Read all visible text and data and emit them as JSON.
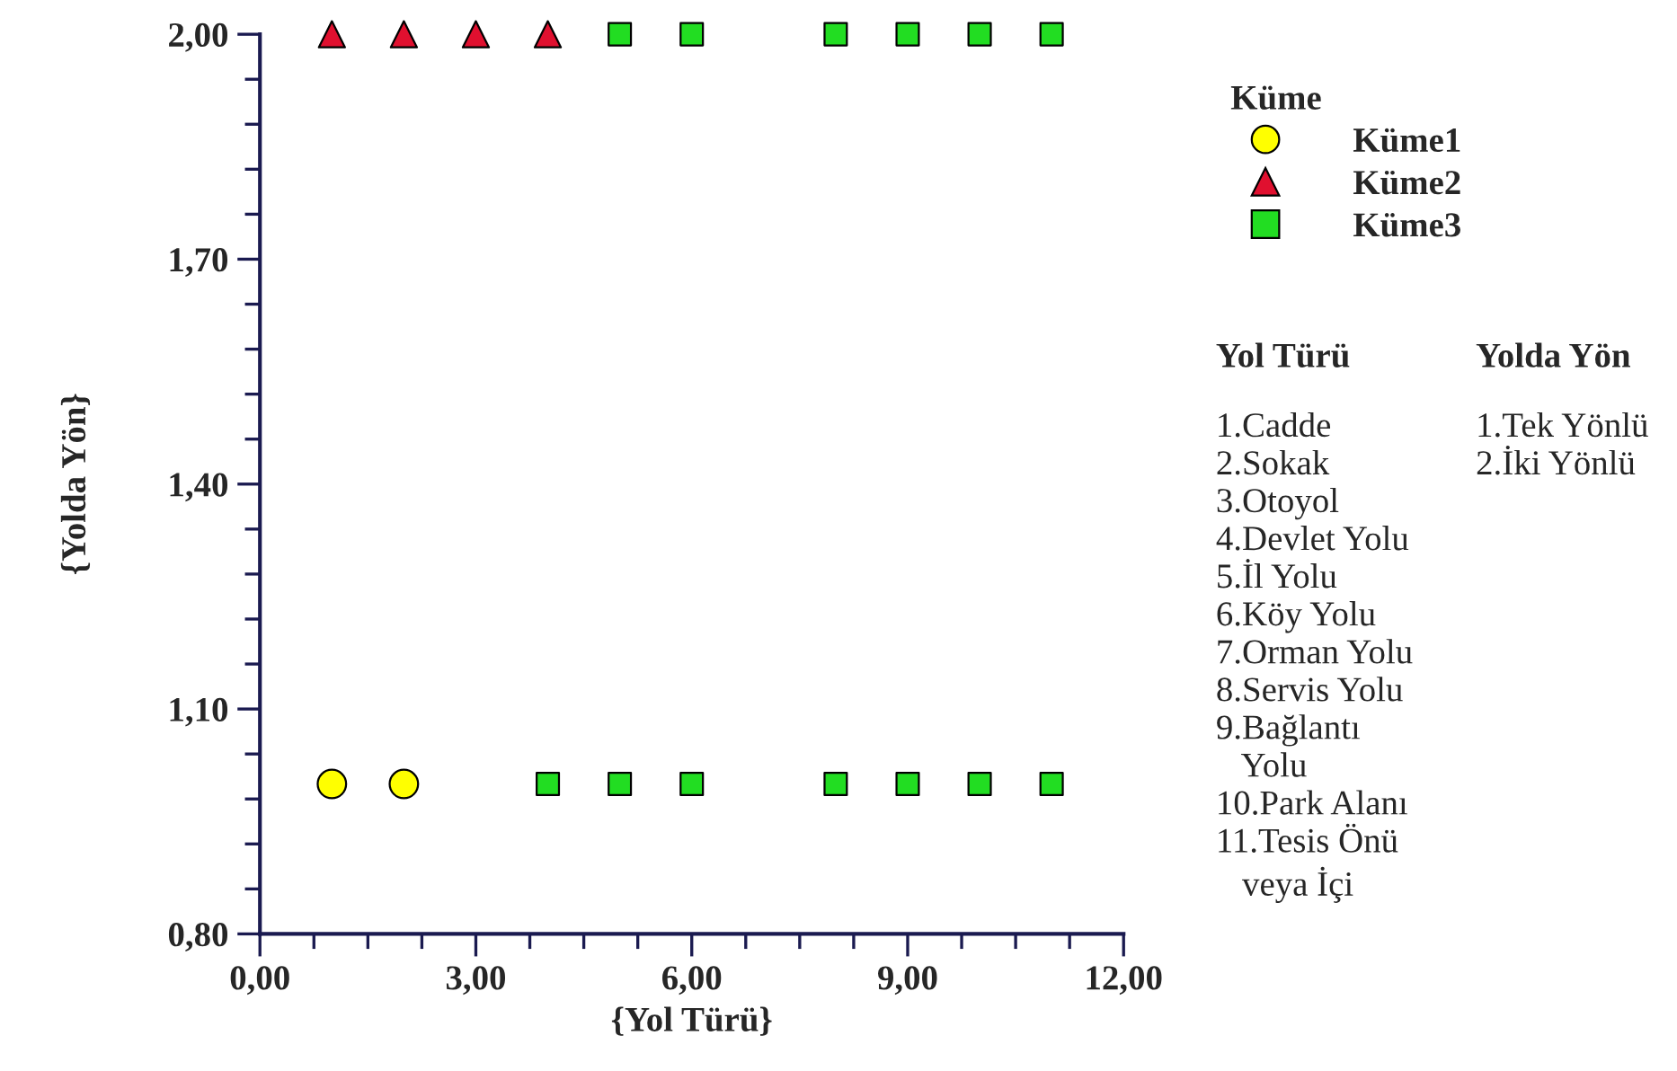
{
  "chart_data": {
    "type": "scatter",
    "xlabel": "{Yol Türü}",
    "ylabel": "{Yolda Yön}",
    "legend_title": "Küme",
    "legend": "right",
    "grid": false,
    "xlim": [
      0,
      12
    ],
    "ylim": [
      0.8,
      2.0
    ],
    "xticks": [
      {
        "value": 0,
        "label": "0,00"
      },
      {
        "value": 0.75,
        "label": null
      },
      {
        "value": 1.5,
        "label": null
      },
      {
        "value": 2.25,
        "label": null
      },
      {
        "value": 3,
        "label": "3,00"
      },
      {
        "value": 3.75,
        "label": null
      },
      {
        "value": 4.5,
        "label": null
      },
      {
        "value": 5.25,
        "label": null
      },
      {
        "value": 6,
        "label": "6,00"
      },
      {
        "value": 6.75,
        "label": null
      },
      {
        "value": 7.5,
        "label": null
      },
      {
        "value": 8.25,
        "label": null
      },
      {
        "value": 9,
        "label": "9,00"
      },
      {
        "value": 9.75,
        "label": null
      },
      {
        "value": 10.5,
        "label": null
      },
      {
        "value": 11.25,
        "label": null
      },
      {
        "value": 12,
        "label": "12,00"
      }
    ],
    "yticks": [
      {
        "value": 0.8,
        "label": "0,80"
      },
      {
        "value": 0.86,
        "label": null
      },
      {
        "value": 0.92,
        "label": null
      },
      {
        "value": 0.98,
        "label": null
      },
      {
        "value": 1.04,
        "label": null
      },
      {
        "value": 1.1,
        "label": "1,10"
      },
      {
        "value": 1.16,
        "label": null
      },
      {
        "value": 1.22,
        "label": null
      },
      {
        "value": 1.28,
        "label": null
      },
      {
        "value": 1.34,
        "label": null
      },
      {
        "value": 1.4,
        "label": "1,40"
      },
      {
        "value": 1.46,
        "label": null
      },
      {
        "value": 1.52,
        "label": null
      },
      {
        "value": 1.58,
        "label": null
      },
      {
        "value": 1.64,
        "label": null
      },
      {
        "value": 1.7,
        "label": "1,70"
      },
      {
        "value": 1.76,
        "label": null
      },
      {
        "value": 1.82,
        "label": null
      },
      {
        "value": 1.88,
        "label": null
      },
      {
        "value": 1.94,
        "label": null
      },
      {
        "value": 2.0,
        "label": "2,00"
      }
    ],
    "series": [
      {
        "name": "Küme1",
        "color": "#ffff00",
        "marker": "circle",
        "x": [
          1,
          2
        ],
        "values": [
          1,
          1
        ]
      },
      {
        "name": "Küme2",
        "color": "#e0102f",
        "marker": "triangle",
        "x": [
          1,
          2,
          3,
          4
        ],
        "values": [
          2,
          2,
          2,
          2
        ]
      },
      {
        "name": "Küme3",
        "color": "#22dd22",
        "marker": "square",
        "x": [
          4,
          5,
          6,
          8,
          9,
          10,
          11,
          5,
          6,
          8,
          9,
          10,
          11
        ],
        "values": [
          1,
          1,
          1,
          1,
          1,
          1,
          1,
          2,
          2,
          2,
          2,
          2,
          2
        ]
      }
    ],
    "annotations": [
      "Yol Türü",
      "1.Cadde\n2.Sokak\n3.Otoyol\n4.Devlet Yolu\n5.İl Yolu\n6.Köy Yolu\n7.Orman Yolu\n8.Servis Yolu\n9.Bağlantı\n   Yolu\n10.Park Alanı\n11.Tesis Önü\n   veya İçi",
      "Yolda Yön",
      "1.Tek Yönlü\n2.İki Yönlü"
    ]
  }
}
